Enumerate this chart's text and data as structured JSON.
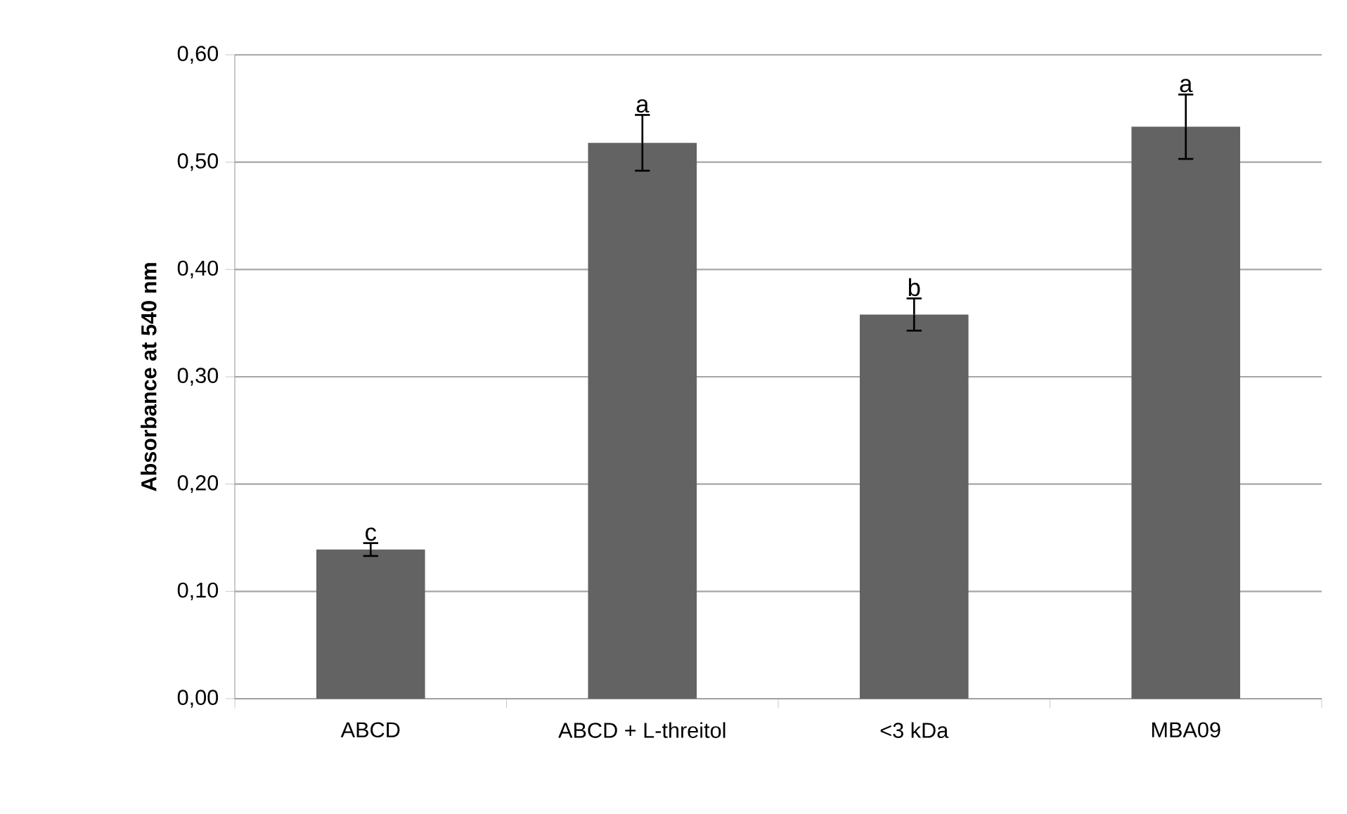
{
  "chart_data": {
    "type": "bar",
    "ylabel": "Absorbance at 540 nm",
    "categories": [
      "ABCD",
      "ABCD + L-threitol",
      "<3 kDa",
      "MBA09"
    ],
    "values": [
      0.139,
      0.518,
      0.358,
      0.533
    ],
    "errors": [
      0.006,
      0.026,
      0.015,
      0.03
    ],
    "color": "#636363",
    "ylim": [
      0,
      0.6
    ],
    "yticks": [
      {
        "value": 0,
        "label": "0,00"
      },
      {
        "value": 0.1,
        "label": "0,10"
      },
      {
        "value": 0.2,
        "label": "0,20"
      },
      {
        "value": 0.3,
        "label": "0,30"
      },
      {
        "value": 0.4,
        "label": "0,40"
      },
      {
        "value": 0.5,
        "label": "0,50"
      },
      {
        "value": 0.6,
        "label": "0,60"
      }
    ],
    "grid": "y",
    "annotations": [
      {
        "text": "c",
        "x": "ABCD",
        "y": 0.145
      },
      {
        "text": "a",
        "x": "ABCD + L-threitol",
        "y": 0.544
      },
      {
        "text": "b",
        "x": "<3 kDa",
        "y": 0.373
      },
      {
        "text": "a",
        "x": "MBA09",
        "y": 0.563
      }
    ]
  }
}
